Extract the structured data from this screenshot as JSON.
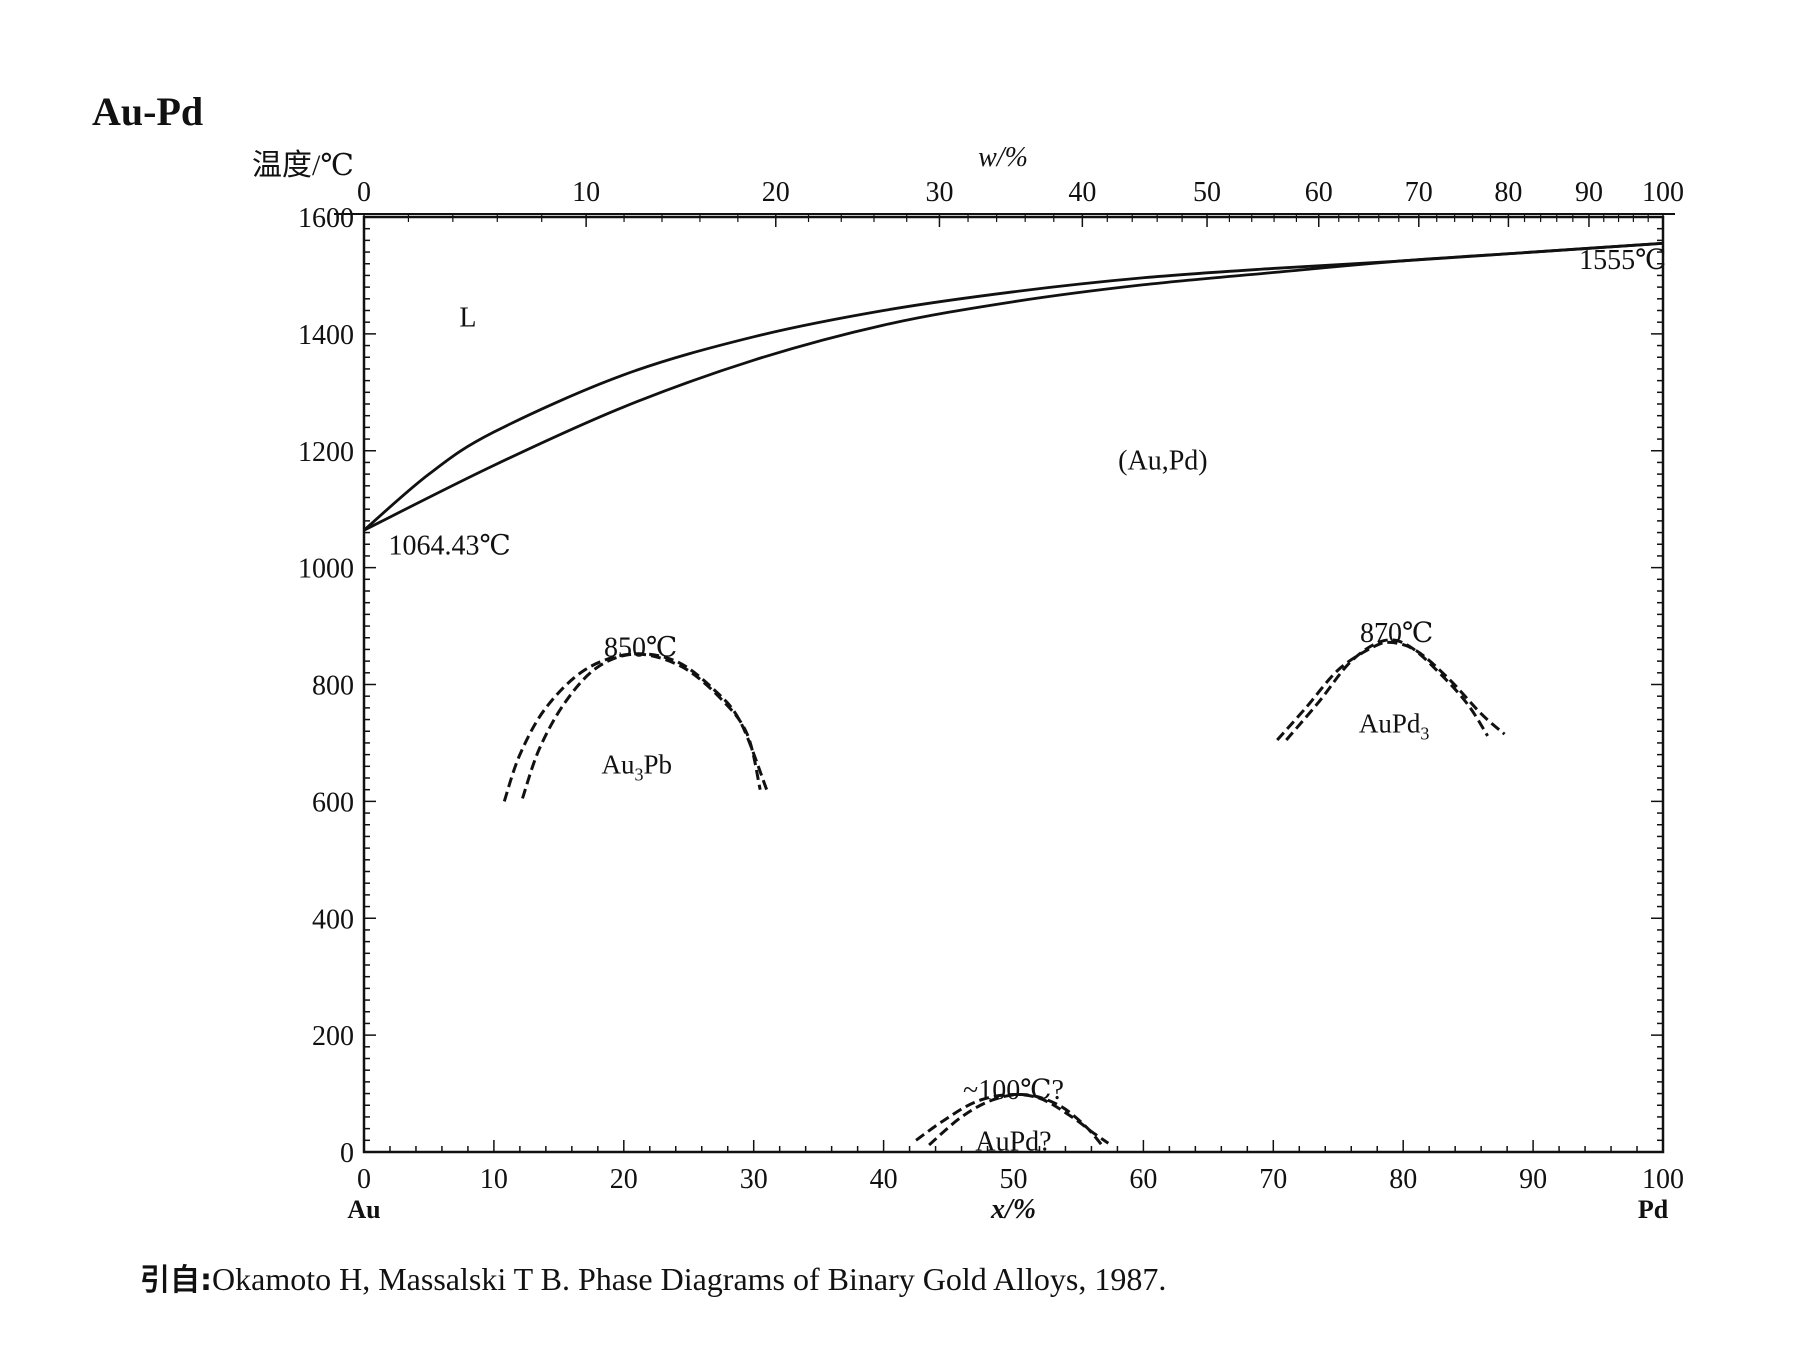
{
  "chart_data": {
    "type": "line",
    "title": "Au-Pd",
    "ylabel": "温度/℃",
    "xlabel_bottom": "x/%",
    "xlabel_top": "w/%",
    "ylim": [
      0,
      1600
    ],
    "xlim": [
      0,
      100
    ],
    "y_ticks": [
      0,
      200,
      400,
      600,
      800,
      1000,
      1200,
      1400,
      1600
    ],
    "x_ticks_bottom": [
      0,
      10,
      20,
      30,
      40,
      50,
      60,
      70,
      80,
      90,
      100
    ],
    "x_ticks_top": [
      {
        "w": 0,
        "x": 0
      },
      {
        "w": 10,
        "x": 17.1
      },
      {
        "w": 20,
        "x": 31.7
      },
      {
        "w": 30,
        "x": 44.3
      },
      {
        "w": 40,
        "x": 55.3
      },
      {
        "w": 50,
        "x": 64.9
      },
      {
        "w": 60,
        "x": 73.5
      },
      {
        "w": 70,
        "x": 81.2
      },
      {
        "w": 80,
        "x": 88.1
      },
      {
        "w": 90,
        "x": 94.3
      },
      {
        "w": 100,
        "x": 100
      }
    ],
    "end_labels": {
      "left": "Au",
      "right": "Pd"
    },
    "series": [
      {
        "style": "solid",
        "points": [
          [
            0,
            1064
          ],
          [
            5,
            1160
          ],
          [
            10,
            1232
          ],
          [
            20,
            1330
          ],
          [
            30,
            1395
          ],
          [
            40,
            1440
          ],
          [
            50,
            1472
          ],
          [
            60,
            1496
          ],
          [
            70,
            1512
          ],
          [
            80,
            1525
          ],
          [
            90,
            1540
          ],
          [
            100,
            1555
          ]
        ]
      },
      {
        "style": "solid",
        "points": [
          [
            0,
            1064
          ],
          [
            10,
            1175
          ],
          [
            20,
            1275
          ],
          [
            30,
            1355
          ],
          [
            40,
            1415
          ],
          [
            50,
            1455
          ],
          [
            60,
            1484
          ],
          [
            70,
            1505
          ],
          [
            80,
            1525
          ],
          [
            90,
            1540
          ],
          [
            100,
            1555
          ]
        ]
      },
      {
        "style": "dashed",
        "points": [
          [
            10.8,
            600
          ],
          [
            12,
            680
          ],
          [
            14,
            760
          ],
          [
            17,
            825
          ],
          [
            20.5,
            852
          ],
          [
            24,
            840
          ],
          [
            27,
            790
          ],
          [
            29,
            735
          ],
          [
            31,
            620
          ]
        ]
      },
      {
        "style": "dashed",
        "points": [
          [
            12.2,
            605
          ],
          [
            13.5,
            690
          ],
          [
            15.5,
            770
          ],
          [
            18,
            830
          ],
          [
            21,
            852
          ],
          [
            24.5,
            830
          ],
          [
            27.5,
            775
          ],
          [
            29.5,
            715
          ],
          [
            30.5,
            620
          ]
        ]
      },
      {
        "style": "dashed",
        "points": [
          [
            70.3,
            705
          ],
          [
            72.5,
            760
          ],
          [
            75,
            825
          ],
          [
            77.5,
            862
          ],
          [
            79,
            872
          ],
          [
            81,
            858
          ],
          [
            83.5,
            810
          ],
          [
            86,
            750
          ],
          [
            87.8,
            715
          ]
        ]
      },
      {
        "style": "dashed",
        "points": [
          [
            71,
            705
          ],
          [
            73.5,
            770
          ],
          [
            76,
            840
          ],
          [
            78.5,
            875
          ],
          [
            80.5,
            865
          ],
          [
            83,
            815
          ],
          [
            85,
            765
          ],
          [
            86.5,
            712
          ]
        ]
      },
      {
        "style": "dashed",
        "points": [
          [
            42.5,
            20
          ],
          [
            44.5,
            52
          ],
          [
            47,
            85
          ],
          [
            49.5,
            98
          ],
          [
            52,
            92
          ],
          [
            54.5,
            60
          ],
          [
            56,
            35
          ],
          [
            57.3,
            15
          ]
        ]
      },
      {
        "style": "dashed",
        "points": [
          [
            43.5,
            12
          ],
          [
            46,
            60
          ],
          [
            48.5,
            90
          ],
          [
            51,
            98
          ],
          [
            53.5,
            80
          ],
          [
            55.5,
            45
          ],
          [
            56.8,
            12
          ]
        ]
      }
    ],
    "annotations": [
      {
        "text": "L",
        "x": 8,
        "y": 1430
      },
      {
        "text": "(Au,Pd)",
        "x": 61.5,
        "y": 1185
      },
      {
        "text": "1064.43℃",
        "x": 4.2,
        "y": 1040
      },
      {
        "text": "1555℃",
        "x": 96.9,
        "y": 1528
      },
      {
        "text": "850℃",
        "x": 21.3,
        "y": 865
      },
      {
        "text": "870℃",
        "x": 79.5,
        "y": 890
      },
      {
        "text": "~100℃?",
        "x": 50,
        "y": 108
      },
      {
        "text": "AuPd?",
        "x": 50,
        "y": 20
      }
    ],
    "phase_labels": [
      {
        "base": "Au",
        "sub": "3",
        "tail": "Pb",
        "x": 21,
        "y": 665
      },
      {
        "base": "AuPd",
        "sub": "3",
        "tail": "",
        "x": 79.3,
        "y": 735
      }
    ]
  },
  "citation": {
    "lead": "引自:",
    "text": "Okamoto H, Massalski T B. Phase Diagrams of Binary Gold Alloys, 1987."
  },
  "colors": {
    "line": "#111111",
    "background": "#ffffff"
  }
}
